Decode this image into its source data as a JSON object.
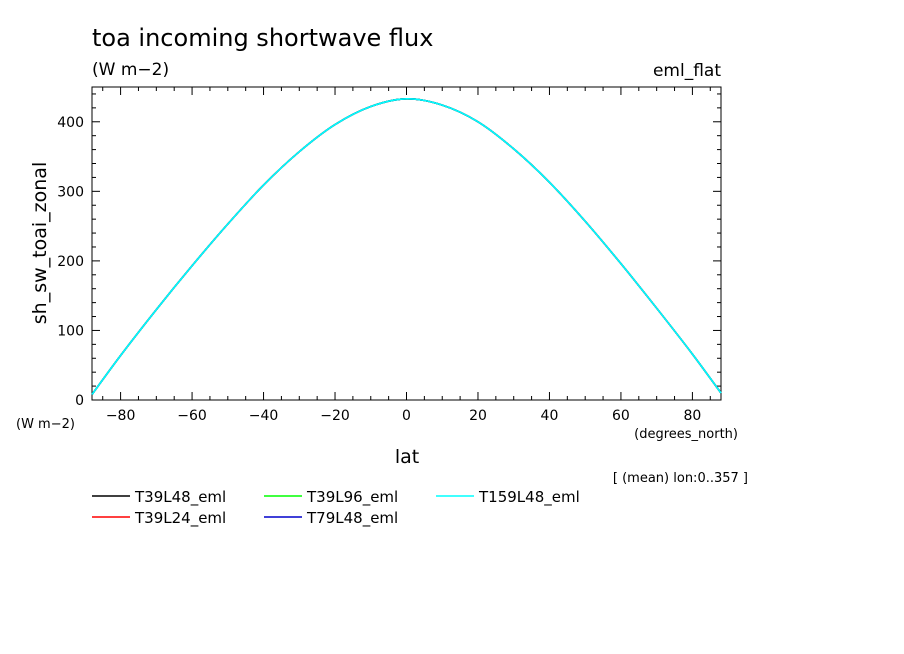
{
  "chart_data": {
    "type": "line",
    "title": "toa incoming shortwave flux",
    "units": "(W m−2)",
    "experiment": "eml_flat",
    "xlabel": "lat",
    "xunits": "(degrees_north)",
    "ylabel": "sh_sw_toai_zonal",
    "yunits": "(W m−2)",
    "subset_note": "[ (mean) lon:0..357 ]",
    "xlim": [
      -88,
      88
    ],
    "ylim": [
      0,
      450
    ],
    "xticks": [
      -80,
      -60,
      -40,
      -20,
      0,
      20,
      40,
      60,
      80
    ],
    "xtick_labels": [
      "−80",
      "−60",
      "−40",
      "−20",
      "0",
      "20",
      "40",
      "60",
      "80"
    ],
    "yticks": [
      0,
      100,
      200,
      300,
      400
    ],
    "ytick_labels": [
      "0",
      "100",
      "200",
      "300",
      "400"
    ],
    "x": [
      -88,
      -80,
      -70,
      -60,
      -50,
      -40,
      -30,
      -20,
      -10,
      0,
      10,
      20,
      30,
      40,
      50,
      60,
      70,
      80,
      88
    ],
    "series": [
      {
        "name": "T39L48_eml",
        "color": "#000000",
        "values": [
          8,
          64,
          130,
          193,
          253,
          309,
          357,
          396,
          422,
          433,
          424,
          400,
          361,
          313,
          257,
          196,
          132,
          66,
          10
        ]
      },
      {
        "name": "T39L24_eml",
        "color": "#ff0000",
        "values": [
          8,
          64,
          130,
          193,
          253,
          309,
          357,
          396,
          422,
          433,
          424,
          400,
          361,
          313,
          257,
          196,
          132,
          66,
          10
        ]
      },
      {
        "name": "T39L96_eml",
        "color": "#00ff00",
        "values": [
          8,
          64,
          130,
          193,
          253,
          309,
          357,
          396,
          422,
          433,
          424,
          400,
          361,
          313,
          257,
          196,
          132,
          66,
          10
        ]
      },
      {
        "name": "T79L48_eml",
        "color": "#0000cc",
        "values": [
          8,
          64,
          130,
          193,
          253,
          309,
          357,
          396,
          422,
          433,
          424,
          400,
          361,
          313,
          257,
          196,
          132,
          66,
          10
        ]
      },
      {
        "name": "T159L48_eml",
        "color": "#00ffff",
        "values": [
          8,
          64,
          130,
          193,
          253,
          309,
          357,
          396,
          422,
          433,
          424,
          400,
          361,
          313,
          257,
          196,
          132,
          66,
          10
        ]
      }
    ],
    "legend_placement": "bottom-left",
    "grid": false
  }
}
